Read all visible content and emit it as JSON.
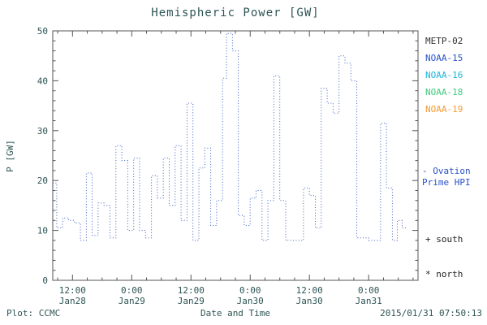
{
  "title": "Hemispheric Power [GW]",
  "footer": {
    "plot_credit": "Plot: CCMC",
    "xlabel": "Date and Time",
    "timestamp": "2015/01/31 07:50:13"
  },
  "legend": {
    "satellites": [
      {
        "label": "METP-02",
        "color": "#333333"
      },
      {
        "label": "NOAA-15",
        "color": "#2a52c8"
      },
      {
        "label": "NOAA-16",
        "color": "#1ab4d8"
      },
      {
        "label": "NOAA-18",
        "color": "#3ecb7e"
      },
      {
        "label": "NOAA-19",
        "color": "#f59a32"
      }
    ],
    "line_label_line1": "- Ovation",
    "line_label_line2": "Prime HPI",
    "line_label_color": "#2a52c8",
    "south_marker": "+ south",
    "north_marker": "* north"
  },
  "chart_data": {
    "type": "line",
    "title": "Hemispheric Power [GW]",
    "xlabel": "Date and Time",
    "ylabel": "P [GW]",
    "ylim": [
      0,
      50
    ],
    "y_ticks": [
      0,
      10,
      20,
      30,
      40,
      50
    ],
    "x_hours_range": [
      8,
      82
    ],
    "x_end": 79.8,
    "grid": false,
    "legend_position": "right",
    "x_ticks": [
      {
        "hour": 12,
        "time": "12:00",
        "date": "Jan28"
      },
      {
        "hour": 24,
        "time": "0:00",
        "date": "Jan29"
      },
      {
        "hour": 36,
        "time": "12:00",
        "date": "Jan29"
      },
      {
        "hour": 48,
        "time": "0:00",
        "date": "Jan30"
      },
      {
        "hour": 60,
        "time": "12:00",
        "date": "Jan30"
      },
      {
        "hour": 72,
        "time": "0:00",
        "date": "Jan31"
      }
    ],
    "series": [
      {
        "name": "Ovation Prime HPI",
        "color": "#3a5fc0",
        "style": "dotted-step",
        "points": [
          [
            8,
            19.5
          ],
          [
            8.8,
            10.5
          ],
          [
            10,
            12.5
          ],
          [
            11.2,
            12
          ],
          [
            12.4,
            11.5
          ],
          [
            13.6,
            8
          ],
          [
            14.8,
            21.5
          ],
          [
            16,
            9
          ],
          [
            17.2,
            15.5
          ],
          [
            18.4,
            15
          ],
          [
            19.6,
            8.5
          ],
          [
            20.8,
            27
          ],
          [
            22,
            24
          ],
          [
            23.2,
            10
          ],
          [
            24.4,
            24.5
          ],
          [
            25.6,
            10
          ],
          [
            26.8,
            8.5
          ],
          [
            28,
            21
          ],
          [
            29.2,
            16.5
          ],
          [
            30.4,
            24.5
          ],
          [
            31.6,
            15
          ],
          [
            32.8,
            27
          ],
          [
            34,
            12
          ],
          [
            35.2,
            35.5
          ],
          [
            36.4,
            8
          ],
          [
            37.6,
            22.5
          ],
          [
            38.8,
            26.5
          ],
          [
            40,
            11
          ],
          [
            41.2,
            16
          ],
          [
            42.4,
            40.5
          ],
          [
            43.2,
            49.5
          ],
          [
            44.4,
            46
          ],
          [
            45.6,
            13
          ],
          [
            46.8,
            11
          ],
          [
            48,
            16.5
          ],
          [
            49.2,
            18
          ],
          [
            50.4,
            8
          ],
          [
            51.6,
            16
          ],
          [
            52.8,
            41
          ],
          [
            54,
            16
          ],
          [
            55.2,
            8
          ],
          [
            56.4,
            8
          ],
          [
            57.6,
            8
          ],
          [
            58.8,
            18.5
          ],
          [
            60,
            17
          ],
          [
            61.2,
            10.5
          ],
          [
            62.4,
            38.5
          ],
          [
            63.6,
            35.5
          ],
          [
            64.8,
            33.5
          ],
          [
            66,
            45
          ],
          [
            67.2,
            43.5
          ],
          [
            68.4,
            40
          ],
          [
            69.6,
            8.5
          ],
          [
            70.8,
            8.5
          ],
          [
            72,
            8
          ],
          [
            73.2,
            8
          ],
          [
            74.4,
            31.5
          ],
          [
            75.6,
            18.5
          ],
          [
            76.8,
            8
          ],
          [
            77.8,
            12
          ],
          [
            78.8,
            10.5
          ]
        ]
      }
    ]
  }
}
